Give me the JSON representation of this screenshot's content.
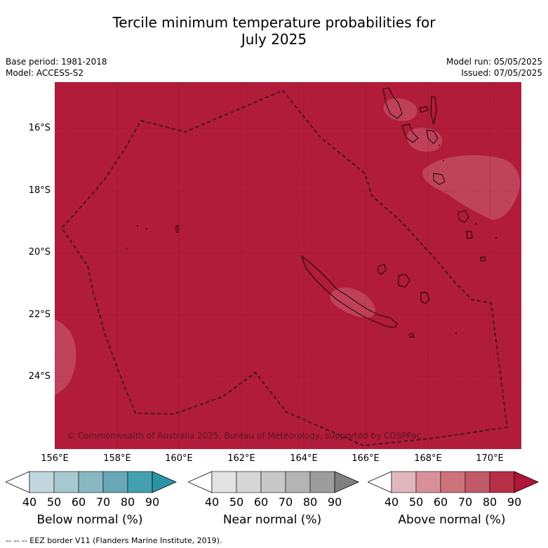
{
  "title_line1": "Tercile minimum temperature probabilities for",
  "title_line2": "July 2025",
  "base_period": "Base period: 1981-2018",
  "model": "Model: ACCESS-S2",
  "model_run": "Model run: 05/05/2025",
  "issued": "Issued: 07/05/2025",
  "copyright": "© Commonwealth of Australia 2025, Bureau of Meteorology, supported by COSPPac",
  "footnote": "--  --  -- EEZ border V11 (Flanders Marine Institute, 2019).",
  "lat_labels": [
    "16°S",
    "18°S",
    "20°S",
    "22°S",
    "24°S"
  ],
  "lon_labels": [
    "156°E",
    "158°E",
    "160°E",
    "162°E",
    "164°E",
    "166°E",
    "168°E",
    "170°E"
  ],
  "colorbars": [
    {
      "label": "Below normal (%)",
      "ticks": [
        "40",
        "50",
        "60",
        "70",
        "80",
        "90"
      ],
      "colors": [
        "#ffffff",
        "#c0d7dd",
        "#a6c9cf",
        "#89b8c2",
        "#68a8b6",
        "#43a0b0",
        "#2a94a6"
      ]
    },
    {
      "label": "Near normal (%)",
      "ticks": [
        "40",
        "50",
        "60",
        "70",
        "80",
        "90"
      ],
      "colors": [
        "#ffffff",
        "#e3e3e3",
        "#d6d6d6",
        "#c8c8c8",
        "#b4b4b4",
        "#9d9d9d",
        "#808080"
      ]
    },
    {
      "label": "Above normal (%)",
      "ticks": [
        "40",
        "50",
        "60",
        "70",
        "80",
        "90"
      ],
      "colors": [
        "#ffffff",
        "#e1b6be",
        "#d89198",
        "#cd737c",
        "#c15a66",
        "#b72f46",
        "#b0153a"
      ]
    }
  ],
  "map_colors": {
    "dominant": "#b11c3a",
    "lighter": "#c24b62",
    "grid": "#6b1020"
  }
}
